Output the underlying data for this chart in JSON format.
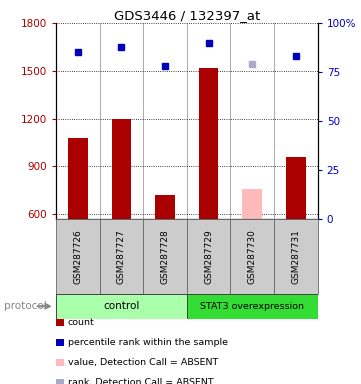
{
  "title": "GDS3446 / 132397_at",
  "samples": [
    "GSM287726",
    "GSM287727",
    "GSM287728",
    "GSM287729",
    "GSM287730",
    "GSM287731"
  ],
  "count_values": [
    1080,
    1200,
    720,
    1520,
    null,
    960
  ],
  "count_absent": [
    null,
    null,
    null,
    null,
    760,
    null
  ],
  "rank_values": [
    85,
    88,
    78,
    90,
    null,
    83
  ],
  "rank_absent": [
    null,
    null,
    null,
    null,
    79,
    null
  ],
  "ylim_left": [
    570,
    1800
  ],
  "ylim_right": [
    0,
    100
  ],
  "yticks_left": [
    600,
    900,
    1200,
    1500,
    1800
  ],
  "yticks_right": [
    0,
    25,
    50,
    75,
    100
  ],
  "bar_color_present": "#aa0000",
  "bar_color_absent": "#ffbbbb",
  "rank_color_present": "#0000bb",
  "rank_color_absent": "#aaaacc",
  "bar_width": 0.45,
  "background_color": "#ffffff",
  "ctrl_color": "#aaffaa",
  "stat3_color": "#33dd33",
  "sample_box_color": "#cccccc",
  "legend_items": [
    {
      "color": "#aa0000",
      "label": "count"
    },
    {
      "color": "#0000bb",
      "label": "percentile rank within the sample"
    },
    {
      "color": "#ffbbbb",
      "label": "value, Detection Call = ABSENT"
    },
    {
      "color": "#aaaacc",
      "label": "rank, Detection Call = ABSENT"
    }
  ]
}
